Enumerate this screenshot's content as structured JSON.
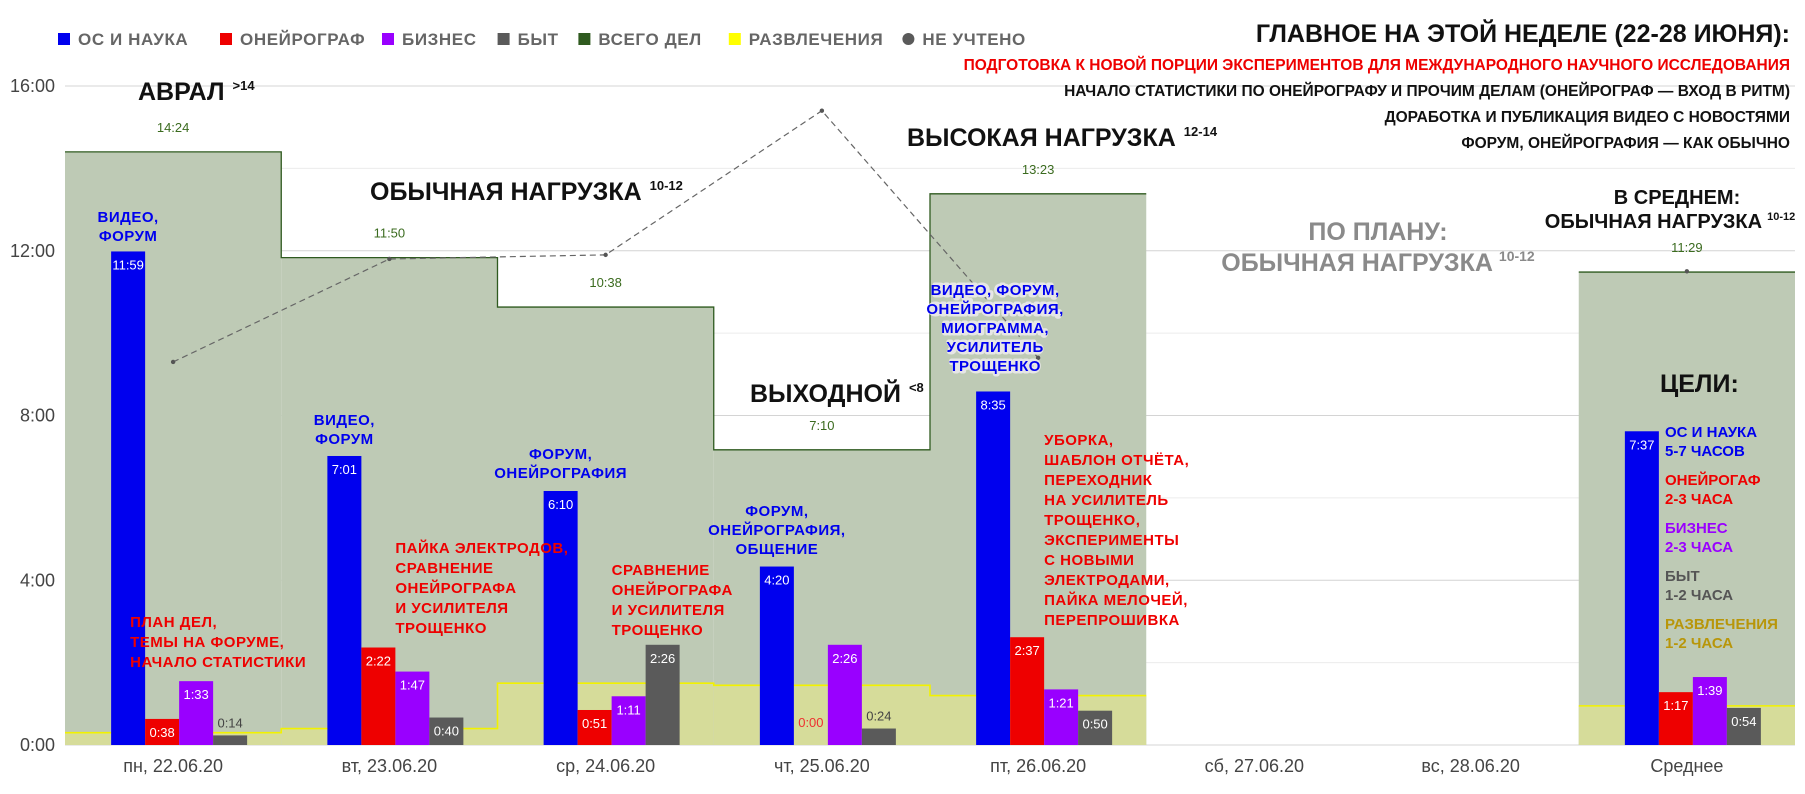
{
  "legend": [
    {
      "label": "ОС И НАУКА",
      "color": "#0000ee"
    },
    {
      "label": "ОНЕЙРОГРАФ",
      "color": "#ee0000"
    },
    {
      "label": "БИЗНЕС",
      "color": "#9900ff"
    },
    {
      "label": "БЫТ",
      "color": "#5a5a5a"
    },
    {
      "label": "ВСЕГО ДЕЛ",
      "color": "#2f5a1f"
    },
    {
      "label": "РАЗВЛЕЧЕНИЯ",
      "color": "#ffff00"
    },
    {
      "label": "НЕ УЧТЕНО",
      "color": "#5a5a5a"
    }
  ],
  "week": {
    "title": "ГЛАВНОЕ НА ЭТОЙ НЕДЕЛЕ (22-28 ИЮНЯ):",
    "lines": [
      {
        "text": "ПОДГОТОВКА К НОВОЙ ПОРЦИИ ЭКСПЕРИМЕНТОВ ДЛЯ МЕЖДУНАРОДНОГО НАУЧНОГО ИССЛЕДОВАНИЯ",
        "color": "#ee0000"
      },
      {
        "text": "НАЧАЛО СТАТИСТИКИ ПО ОНЕЙРОГРАФУ И ПРОЧИМ ДЕЛАМ (ОНЕЙРОГРАФ — ВХОД В РИТМ)",
        "color": "#111111"
      },
      {
        "text": "ДОРАБОТКА И ПУБЛИКАЦИЯ ВИДЕО С НОВОСТЯМИ",
        "color": "#111111"
      },
      {
        "text": "ФОРУМ, ОНЕЙРОГРАФИЯ — КАК ОБЫЧНО",
        "color": "#111111"
      }
    ]
  },
  "load_labels": [
    {
      "text": "АВРАЛ",
      "sup": ">14",
      "day": 0
    },
    {
      "text": "ОБЫЧНАЯ НАГРУЗКА",
      "sup": "10-12",
      "day": 1
    },
    {
      "text": "ВЫХОДНОЙ",
      "sup": "<8",
      "day": 3
    },
    {
      "text": "ВЫСОКАЯ НАГРУЗКА",
      "sup": "12-14",
      "day": 4
    }
  ],
  "plan": {
    "line1": "ПО ПЛАНУ:",
    "line2": "ОБЫЧНАЯ НАГРУЗКА",
    "sup": "10-12"
  },
  "average_note": {
    "line1": "В СРЕДНЕМ:",
    "line2": "ОБЫЧНАЯ НАГРУЗКА",
    "sup": "10-12"
  },
  "goals": {
    "title": "ЦЕЛИ:",
    "items": [
      {
        "line1": "ОС И НАУКА",
        "line2": "5-7 ЧАСОВ",
        "color": "#0000ee"
      },
      {
        "line1": "ОНЕЙРОГАФ",
        "line2": "2-3 ЧАСА",
        "color": "#ee0000"
      },
      {
        "line1": "БИЗНЕС",
        "line2": "2-3 ЧАСА",
        "color": "#9900ff"
      },
      {
        "line1": "БЫТ",
        "line2": "1-2 ЧАСА",
        "color": "#555555"
      },
      {
        "line1": "РАЗВЛЕЧЕНИЯ",
        "line2": "1-2 ЧАСА",
        "color": "#b8960a"
      }
    ]
  },
  "day_notes": [
    {
      "day": 0,
      "os": [
        "ВИДЕО,",
        "ФОРУМ"
      ],
      "red": [
        "ПЛАН ДЕЛ,",
        "ТЕМЫ НА ФОРУМЕ,",
        "НАЧАЛО СТАТИСТИКИ"
      ]
    },
    {
      "day": 1,
      "os": [
        "ВИДЕО,",
        "ФОРУМ"
      ],
      "red": [
        "ПАЙКА ЭЛЕКТРОДОВ,",
        "СРАВНЕНИЕ",
        "ОНЕЙРОГРАФА",
        "И УСИЛИТЕЛЯ",
        "ТРОЩЕНКО"
      ]
    },
    {
      "day": 2,
      "os": [
        "ФОРУМ,",
        "ОНЕЙРОГРАФИЯ"
      ],
      "red": [
        "СРАВНЕНИЕ",
        "ОНЕЙРОГРАФА",
        "И УСИЛИТЕЛЯ",
        "ТРОЩЕНКО"
      ]
    },
    {
      "day": 3,
      "os": [
        "ФОРУМ,",
        "ОНЕЙРОГРАФИЯ,",
        "ОБЩЕНИЕ"
      ],
      "red": []
    },
    {
      "day": 4,
      "os": [
        "ВИДЕО, ФОРУМ,",
        "ОНЕЙРОГРАФИЯ,",
        "МИОГРАММА,",
        "УСИЛИТЕЛЬ",
        "ТРОЩЕНКО"
      ],
      "red": [
        "УБОРКА,",
        "ШАБЛОН ОТЧЁТА,",
        "ПЕРЕХОДНИК",
        "НА УСИЛИТЕЛЬ",
        "ТРОЩЕНКО,",
        "ЭКСПЕРИМЕНТЫ",
        "С НОВЫМИ",
        "ЭЛЕКТРОДАМИ,",
        "ПАЙКА МЕЛОЧЕЙ,",
        "ПЕРЕПРОШИВКА"
      ]
    }
  ],
  "chart_data": {
    "type": "bar",
    "categories": [
      "пн, 22.06.20",
      "вт, 23.06.20",
      "ср, 24.06.20",
      "чт, 25.06.20",
      "пт, 26.06.20",
      "сб, 27.06.20",
      "вс, 28.06.20",
      "Среднее"
    ],
    "ylim": [
      0,
      16
    ],
    "yticks": [
      "0:00",
      "4:00",
      "8:00",
      "12:00",
      "16:00"
    ],
    "grid": true,
    "legend_position": "top-left",
    "series": [
      {
        "name": "ОС И НАУКА",
        "color": "#0000ee",
        "values": [
          11.983,
          7.017,
          6.167,
          4.333,
          8.583,
          null,
          null,
          7.617
        ],
        "labels": [
          "11:59",
          "7:01",
          "6:10",
          "4:20",
          "8:35",
          "",
          "",
          "7:37"
        ]
      },
      {
        "name": "ОНЕЙРОГРАФ",
        "color": "#ee0000",
        "values": [
          0.633,
          2.367,
          0.85,
          0,
          2.617,
          null,
          null,
          1.283
        ],
        "labels": [
          "0:38",
          "2:22",
          "0:51",
          "0:00",
          "2:37",
          "",
          "",
          "1:17"
        ]
      },
      {
        "name": "БИЗНЕС",
        "color": "#9900ff",
        "values": [
          1.55,
          1.783,
          1.183,
          2.433,
          1.35,
          null,
          null,
          1.65
        ],
        "labels": [
          "1:33",
          "1:47",
          "1:11",
          "2:26",
          "1:21",
          "",
          "",
          "1:39"
        ]
      },
      {
        "name": "БЫТ",
        "color": "#5a5a5a",
        "values": [
          0.233,
          0.667,
          2.433,
          0.4,
          0.833,
          null,
          null,
          0.9
        ],
        "labels": [
          "0:14",
          "0:40",
          "2:26",
          "0:24",
          "0:50",
          "",
          "",
          "0:54"
        ]
      },
      {
        "name": "ВСЕГО ДЕЛ",
        "color": "#2f5a1f",
        "values": [
          14.4,
          11.833,
          10.633,
          7.167,
          13.383,
          null,
          null,
          11.483
        ],
        "labels": [
          "14:24",
          "11:50",
          "10:38",
          "7:10",
          "13:23",
          "",
          "",
          "11:29"
        ]
      },
      {
        "name": "РАЗВЛЕЧЕНИЯ",
        "color": "#ffff00",
        "values": [
          0.3,
          0.4,
          1.5,
          1.45,
          1.2,
          null,
          null,
          0.95
        ]
      },
      {
        "name": "НЕ УЧТЕНО",
        "color": "#5a5a5a",
        "values": [
          9.3,
          11.8,
          11.9,
          15.4,
          9.4,
          null,
          null,
          11.5
        ]
      }
    ]
  }
}
